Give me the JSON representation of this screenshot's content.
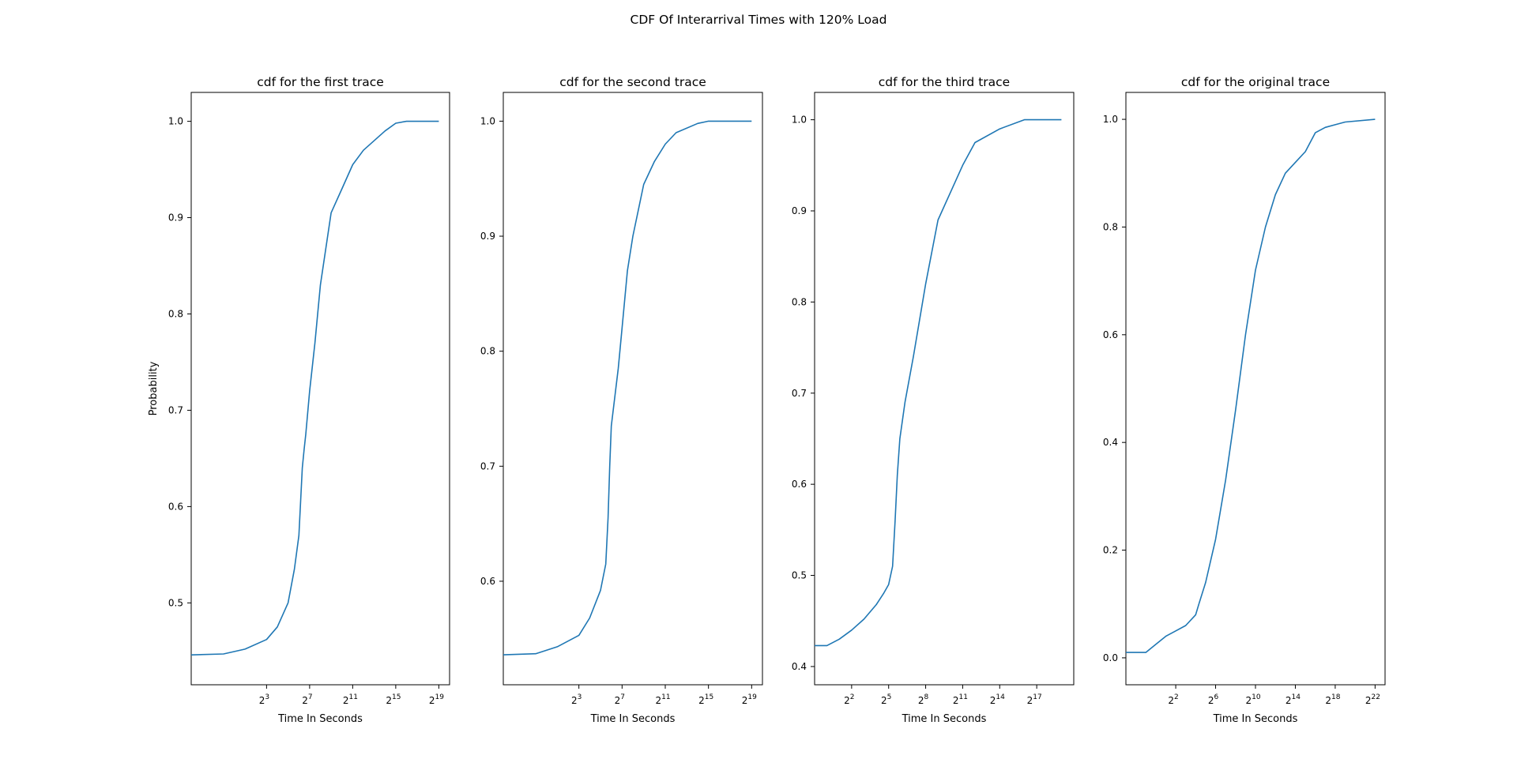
{
  "figure": {
    "suptitle": "CDF Of Interarrival Times with 120% Load",
    "line_color": "#1f77b4"
  },
  "chart_data": [
    {
      "type": "line",
      "title": "cdf for the first trace",
      "xlabel": "Time In Seconds",
      "ylabel": "Probability",
      "x_scale": "log2",
      "grid": false,
      "xlim": [
        0.0625,
        1048576
      ],
      "ylim": [
        0.415,
        1.03
      ],
      "x_ticks": [
        {
          "base": "2",
          "exp": "3",
          "value": 8
        },
        {
          "base": "2",
          "exp": "7",
          "value": 128
        },
        {
          "base": "2",
          "exp": "11",
          "value": 2048
        },
        {
          "base": "2",
          "exp": "15",
          "value": 32768
        },
        {
          "base": "2",
          "exp": "19",
          "value": 524288
        }
      ],
      "y_ticks": [
        {
          "label": "0.5",
          "value": 0.5
        },
        {
          "label": "0.6",
          "value": 0.6
        },
        {
          "label": "0.7",
          "value": 0.7
        },
        {
          "label": "0.8",
          "value": 0.8
        },
        {
          "label": "0.9",
          "value": 0.9
        },
        {
          "label": "1.0",
          "value": 1.0
        }
      ],
      "series": [
        {
          "x": [
            0.0625,
            0.5,
            2,
            8,
            16,
            32,
            48,
            64,
            80,
            90,
            100,
            128,
            180,
            256,
            512,
            1024,
            2048,
            4096,
            16384,
            32768,
            65536,
            524288
          ],
          "y": [
            0.446,
            0.447,
            0.452,
            0.462,
            0.475,
            0.5,
            0.535,
            0.57,
            0.64,
            0.66,
            0.675,
            0.72,
            0.77,
            0.83,
            0.905,
            0.93,
            0.955,
            0.97,
            0.99,
            0.998,
            1.0,
            1.0
          ]
        }
      ]
    },
    {
      "type": "line",
      "title": "cdf for the second trace",
      "xlabel": "Time In Seconds",
      "ylabel": "",
      "x_scale": "log2",
      "grid": false,
      "xlim": [
        0.0625,
        1048576
      ],
      "ylim": [
        0.51,
        1.025
      ],
      "x_ticks": [
        {
          "base": "2",
          "exp": "3",
          "value": 8
        },
        {
          "base": "2",
          "exp": "7",
          "value": 128
        },
        {
          "base": "2",
          "exp": "11",
          "value": 2048
        },
        {
          "base": "2",
          "exp": "15",
          "value": 32768
        },
        {
          "base": "2",
          "exp": "19",
          "value": 524288
        }
      ],
      "y_ticks": [
        {
          "label": "0.6",
          "value": 0.6
        },
        {
          "label": "0.7",
          "value": 0.7
        },
        {
          "label": "0.8",
          "value": 0.8
        },
        {
          "label": "0.9",
          "value": 0.9
        },
        {
          "label": "1.0",
          "value": 1.0
        }
      ],
      "series": [
        {
          "x": [
            0.0625,
            0.5,
            2,
            8,
            16,
            32,
            45,
            52,
            58,
            64,
            100,
            128,
            180,
            256,
            512,
            1024,
            2048,
            4096,
            16384,
            32768,
            524288
          ],
          "y": [
            0.536,
            0.537,
            0.543,
            0.553,
            0.568,
            0.592,
            0.615,
            0.655,
            0.7,
            0.735,
            0.785,
            0.82,
            0.87,
            0.9,
            0.945,
            0.965,
            0.98,
            0.99,
            0.998,
            1.0,
            1.0
          ]
        }
      ]
    },
    {
      "type": "line",
      "title": "cdf for the third trace",
      "xlabel": "Time In Seconds",
      "ylabel": "",
      "x_scale": "log2",
      "grid": false,
      "xlim": [
        0.5,
        1048576
      ],
      "ylim": [
        0.38,
        1.03
      ],
      "x_ticks": [
        {
          "base": "2",
          "exp": "2",
          "value": 4
        },
        {
          "base": "2",
          "exp": "5",
          "value": 32
        },
        {
          "base": "2",
          "exp": "8",
          "value": 256
        },
        {
          "base": "2",
          "exp": "11",
          "value": 2048
        },
        {
          "base": "2",
          "exp": "14",
          "value": 16384
        },
        {
          "base": "2",
          "exp": "17",
          "value": 131072
        }
      ],
      "y_ticks": [
        {
          "label": "0.4",
          "value": 0.4
        },
        {
          "label": "0.5",
          "value": 0.5
        },
        {
          "label": "0.6",
          "value": 0.6
        },
        {
          "label": "0.7",
          "value": 0.7
        },
        {
          "label": "0.8",
          "value": 0.8
        },
        {
          "label": "0.9",
          "value": 0.9
        },
        {
          "label": "1.0",
          "value": 1.0
        }
      ],
      "series": [
        {
          "x": [
            0.5,
            1,
            2,
            4,
            8,
            16,
            24,
            32,
            40,
            46,
            52,
            60,
            80,
            128,
            256,
            512,
            1024,
            2048,
            4096,
            16384,
            65536,
            524288
          ],
          "y": [
            0.423,
            0.423,
            0.43,
            0.44,
            0.452,
            0.468,
            0.48,
            0.49,
            0.51,
            0.56,
            0.61,
            0.65,
            0.69,
            0.74,
            0.82,
            0.89,
            0.92,
            0.95,
            0.975,
            0.99,
            1.0,
            1.0
          ]
        }
      ]
    },
    {
      "type": "line",
      "title": "cdf for the original trace",
      "xlabel": "Time In Seconds",
      "ylabel": "",
      "x_scale": "log2",
      "grid": false,
      "xlim": [
        0.125,
        8388608
      ],
      "ylim": [
        -0.05,
        1.05
      ],
      "x_ticks": [
        {
          "base": "2",
          "exp": "2",
          "value": 4
        },
        {
          "base": "2",
          "exp": "6",
          "value": 64
        },
        {
          "base": "2",
          "exp": "10",
          "value": 1024
        },
        {
          "base": "2",
          "exp": "14",
          "value": 16384
        },
        {
          "base": "2",
          "exp": "18",
          "value": 262144
        },
        {
          "base": "2",
          "exp": "22",
          "value": 4194304
        }
      ],
      "y_ticks": [
        {
          "label": "0.0",
          "value": 0.0
        },
        {
          "label": "0.2",
          "value": 0.2
        },
        {
          "label": "0.4",
          "value": 0.4
        },
        {
          "label": "0.6",
          "value": 0.6
        },
        {
          "label": "0.8",
          "value": 0.8
        },
        {
          "label": "1.0",
          "value": 1.0
        }
      ],
      "series": [
        {
          "x": [
            0.125,
            0.5,
            1,
            2,
            4,
            8,
            16,
            20,
            32,
            64,
            128,
            256,
            512,
            1024,
            2048,
            4096,
            8192,
            16384,
            32768,
            65536,
            131072,
            262144,
            524288,
            4194304
          ],
          "y": [
            0.01,
            0.01,
            0.025,
            0.04,
            0.05,
            0.06,
            0.08,
            0.1,
            0.14,
            0.22,
            0.33,
            0.46,
            0.6,
            0.72,
            0.8,
            0.86,
            0.9,
            0.92,
            0.94,
            0.975,
            0.985,
            0.99,
            0.995,
            1.0
          ]
        }
      ]
    }
  ]
}
